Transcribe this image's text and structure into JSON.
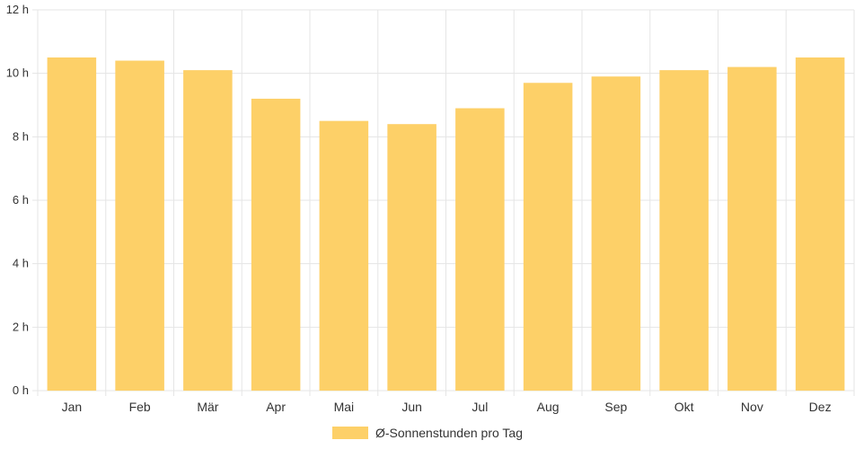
{
  "chart_data": {
    "type": "bar",
    "categories": [
      "Jan",
      "Feb",
      "Mär",
      "Apr",
      "Mai",
      "Jun",
      "Jul",
      "Aug",
      "Sep",
      "Okt",
      "Nov",
      "Dez"
    ],
    "series": [
      {
        "name": "Ø-Sonnenstunden pro Tag",
        "values": [
          10.5,
          10.4,
          10.1,
          9.2,
          8.5,
          8.4,
          8.9,
          9.7,
          9.9,
          10.1,
          10.2,
          10.5
        ],
        "color": "#fdd068"
      }
    ],
    "y_ticks": [
      0,
      2,
      4,
      6,
      8,
      10,
      12
    ],
    "y_unit": "h",
    "ylim": [
      0,
      12
    ],
    "grid": true,
    "legend_position": "bottom-center",
    "colors": {
      "grid": "#e5e5e5",
      "axis": "#cccccc",
      "bar": "#fdd068"
    }
  }
}
